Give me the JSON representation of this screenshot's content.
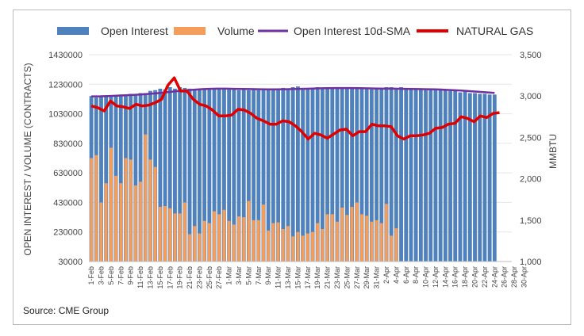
{
  "chart_data": {
    "type": "bar",
    "title": "",
    "source": "Source: CME Group",
    "legend": {
      "placement": "top",
      "items": [
        {
          "label": "Open Interest",
          "kind": "bar",
          "color": "#4f81bd"
        },
        {
          "label": "Volume",
          "kind": "bar",
          "color": "#f59d5a"
        },
        {
          "label": "Open Interest 10d-SMA",
          "kind": "line",
          "color": "#7030a0"
        },
        {
          "label": "NATURAL GAS",
          "kind": "line",
          "color": "#e00000"
        }
      ]
    },
    "ylabel_left": "OPEN INTEREST / VOLUME (CONTRACTS)",
    "ylabel_right": "MMBTU",
    "y_left": {
      "min": 30000,
      "max": 1430000,
      "ticks": [
        "30000",
        "230000",
        "430000",
        "630000",
        "830000",
        "1030000",
        "1230000",
        "1430000"
      ]
    },
    "y_right": {
      "min": 1000,
      "max": 3500,
      "ticks": [
        "1,000",
        "1,500",
        "2,000",
        "2,500",
        "3,000",
        "3,500"
      ]
    },
    "x_tick_labels": [
      "1-Feb",
      "3-Feb",
      "5-Feb",
      "7-Feb",
      "9-Feb",
      "11-Feb",
      "13-Feb",
      "15-Feb",
      "17-Feb",
      "19-Feb",
      "21-Feb",
      "23-Feb",
      "25-Feb",
      "27-Feb",
      "1-Mar",
      "3-Mar",
      "5-Mar",
      "7-Mar",
      "9-Mar",
      "11-Mar",
      "13-Mar",
      "15-Mar",
      "17-Mar",
      "19-Mar",
      "21-Mar",
      "23-Mar",
      "25-Mar",
      "27-Mar",
      "29-Mar",
      "31-Mar",
      "2-Apr",
      "4-Apr",
      "6-Apr",
      "8-Apr",
      "10-Apr",
      "12-Apr",
      "14-Apr",
      "16-Apr",
      "18-Apr",
      "20-Apr",
      "22-Apr",
      "24-Apr",
      "26-Apr",
      "28-Apr",
      "30-Apr"
    ],
    "bar_count": 86,
    "series": [
      {
        "name": "Open Interest",
        "type": "bar",
        "axis": "left",
        "color": "#4f81bd",
        "values": [
          1150000,
          1140000,
          1150000,
          1145000,
          1155000,
          1150000,
          1160000,
          1155000,
          1165000,
          1160000,
          1170000,
          1170000,
          1185000,
          1190000,
          1200000,
          1195000,
          1210000,
          1200000,
          1210000,
          1205000,
          1200000,
          1195000,
          1195000,
          1200000,
          1195000,
          1200000,
          1195000,
          1200000,
          1195000,
          1195000,
          1190000,
          1195000,
          1190000,
          1195000,
          1190000,
          1195000,
          1190000,
          1195000,
          1200000,
          1205000,
          1200000,
          1210000,
          1215000,
          1205000,
          1200000,
          1205000,
          1210000,
          1205000,
          1210000,
          1205000,
          1210000,
          1210000,
          1205000,
          1210000,
          1205000,
          1200000,
          1200000,
          1195000,
          1205000,
          1200000,
          1210000,
          1210000,
          1200000,
          1210000,
          1205000,
          1205000,
          1200000,
          1200000,
          1195000,
          1195000,
          1200000,
          1200000,
          1190000,
          1185000,
          1185000,
          1175000,
          1180000,
          1170000,
          1170000,
          1165000,
          1165000,
          1160000,
          1160000,
          0,
          0,
          0
        ]
      },
      {
        "name": "Volume",
        "type": "bar",
        "axis": "left",
        "color": "#f59d5a",
        "values": [
          730000,
          750000,
          430000,
          560000,
          800000,
          610000,
          560000,
          730000,
          720000,
          545000,
          570000,
          890000,
          720000,
          670000,
          400000,
          405000,
          390000,
          355000,
          355000,
          430000,
          215000,
          270000,
          220000,
          305000,
          290000,
          370000,
          350000,
          380000,
          305000,
          280000,
          335000,
          330000,
          440000,
          310000,
          310000,
          415000,
          240000,
          290000,
          295000,
          250000,
          270000,
          200000,
          230000,
          205000,
          220000,
          230000,
          290000,
          250000,
          350000,
          350000,
          300000,
          395000,
          345000,
          400000,
          430000,
          350000,
          340000,
          300000,
          310000,
          290000,
          420000,
          205000,
          255000,
          0,
          0,
          0,
          0,
          0,
          0,
          0,
          0,
          0,
          0,
          0,
          0,
          0,
          0,
          0,
          0,
          0,
          0,
          0,
          0,
          0,
          0,
          0
        ]
      },
      {
        "name": "Open Interest 10d-SMA",
        "type": "line",
        "axis": "left",
        "color": "#7030a0",
        "values": [
          1148000,
          1148000,
          1150000,
          1152000,
          1155000,
          1158000,
          1161000,
          1165000,
          1170000,
          1176000,
          1182000,
          1188000,
          1192000,
          1196000,
          1199000,
          1200000,
          1200000,
          1199000,
          1198000,
          1197000,
          1196000,
          1195000,
          1195000,
          1196000,
          1197000,
          1199000,
          1200000,
          1202000,
          1203000,
          1204000,
          1204000,
          1204000,
          1203000,
          1202000,
          1201000,
          1200000,
          1200000,
          1199000,
          1198000,
          1197000,
          1196000,
          1195000,
          1193000,
          1190000,
          1187000,
          1183000,
          1179000,
          1175000,
          1171000
        ]
      },
      {
        "name": "NATURAL GAS",
        "type": "line",
        "axis": "right",
        "color": "#e00000",
        "values": [
          2880,
          2860,
          2820,
          2940,
          2880,
          2870,
          2850,
          2900,
          2880,
          2890,
          2920,
          2960,
          3130,
          3220,
          3060,
          3060,
          2960,
          2900,
          2880,
          2830,
          2760,
          2760,
          2770,
          2840,
          2830,
          2790,
          2730,
          2700,
          2660,
          2660,
          2700,
          2690,
          2640,
          2570,
          2480,
          2550,
          2530,
          2490,
          2540,
          2590,
          2600,
          2520,
          2570,
          2570,
          2660,
          2640,
          2640,
          2630,
          2520,
          2480,
          2520,
          2520,
          2530,
          2550,
          2610,
          2620,
          2660,
          2670,
          2750,
          2730,
          2690,
          2760,
          2740,
          2790,
          2800
        ]
      }
    ]
  }
}
